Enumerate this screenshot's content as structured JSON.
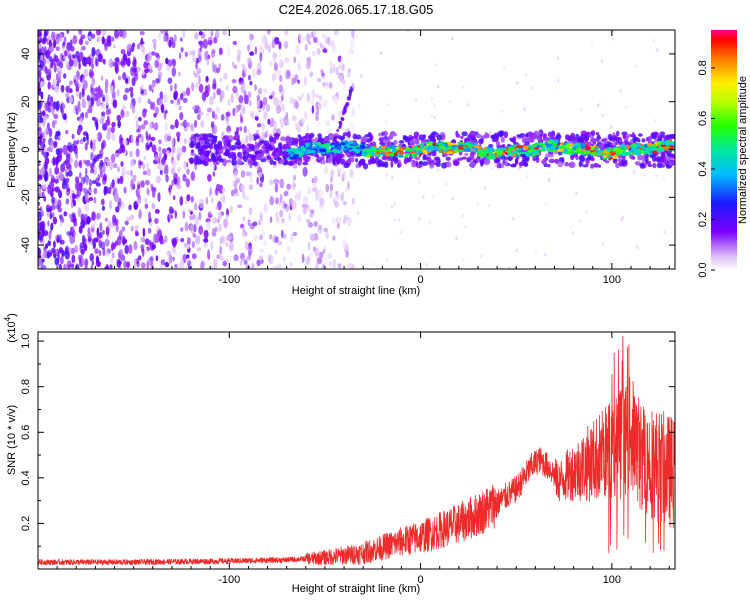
{
  "title": "C2E4.2026.065.17.18.G05",
  "chart_data": [
    {
      "type": "heatmap",
      "id": "spectrogram",
      "xlabel": "Height of straight line (km)",
      "ylabel": "Frequency (Hz)",
      "xlim": [
        -200,
        133
      ],
      "ylim": [
        -50,
        50
      ],
      "xticks": [
        -100,
        0,
        100
      ],
      "xtick_labels": [
        "-100",
        "0",
        "100"
      ],
      "yticks": [
        -40,
        -20,
        0,
        20,
        40
      ],
      "ytick_labels": [
        "-40",
        "-20",
        "0",
        "20",
        "40"
      ],
      "ridge_frequency_hz": 0,
      "colorbar": {
        "label": "Normalized spectral amplitude",
        "range": [
          0,
          0.95
        ],
        "ticks": [
          0.0,
          0.2,
          0.4,
          0.6,
          0.8
        ],
        "tick_labels": [
          "0.0",
          "0.2",
          "0.4",
          "0.6",
          "0.8"
        ]
      }
    },
    {
      "type": "line",
      "id": "snr",
      "xlabel": "Height of straight line (km)",
      "ylabel": "SNR (10 * v/v)",
      "multiplier_label": "(x10",
      "multiplier_exponent": "4",
      "xlim": [
        -200,
        133
      ],
      "ylim": [
        0,
        1.04
      ],
      "xticks": [
        -100,
        0,
        100
      ],
      "xtick_labels": [
        "-100",
        "0",
        "100"
      ],
      "yticks": [
        0.2,
        0.4,
        0.6,
        0.8,
        1.0
      ],
      "ytick_labels": [
        "0.2",
        "0.4",
        "0.6",
        "0.8",
        "1.0"
      ],
      "series_color": "#ee2a2a",
      "envelope": {
        "x": [
          -200,
          -150,
          -100,
          -70,
          -50,
          -30,
          -10,
          0,
          10,
          20,
          30,
          40,
          50,
          58,
          62,
          68,
          72,
          78,
          85,
          95,
          105,
          110,
          115,
          125,
          133
        ],
        "y": [
          0.03,
          0.03,
          0.035,
          0.04,
          0.05,
          0.07,
          0.12,
          0.14,
          0.17,
          0.2,
          0.24,
          0.29,
          0.35,
          0.45,
          0.48,
          0.44,
          0.38,
          0.42,
          0.45,
          0.5,
          0.55,
          0.6,
          0.5,
          0.45,
          0.42
        ]
      }
    }
  ]
}
